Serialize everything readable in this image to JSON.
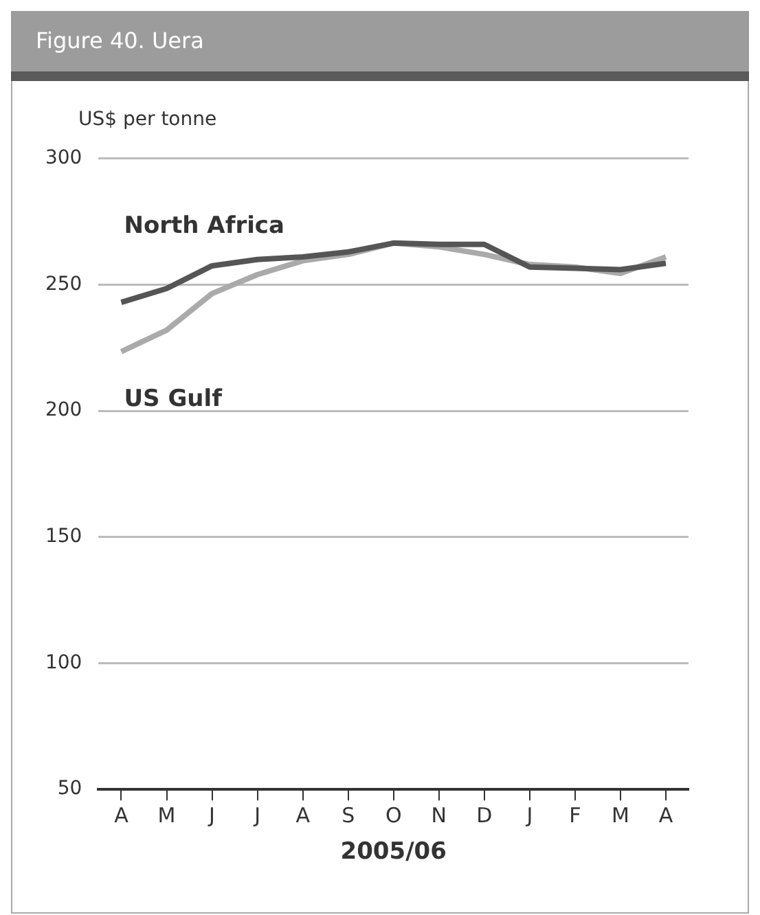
{
  "chart_data": {
    "type": "line",
    "title": "Figure 40. Uera",
    "ylabel": "US$ per tonne",
    "xlabel": "2005/06",
    "categories": [
      "A",
      "M",
      "J",
      "J",
      "A",
      "S",
      "O",
      "N",
      "D",
      "J",
      "F",
      "M",
      "A"
    ],
    "series": [
      {
        "name": "North Africa",
        "color": "#555555",
        "values": [
          243,
          248.5,
          257.5,
          260,
          261,
          263,
          266.5,
          266,
          266,
          257,
          256.5,
          256,
          258.5
        ]
      },
      {
        "name": "US Gulf",
        "color": "#aaaaaa",
        "values": [
          223.5,
          232,
          246.5,
          254,
          259.5,
          262,
          266.5,
          265,
          262,
          258,
          257,
          254.5,
          261
        ]
      }
    ],
    "ylim": [
      50,
      300
    ],
    "yticks": [
      50,
      100,
      150,
      200,
      250,
      300
    ],
    "grid": "y",
    "legend": false,
    "marker": "none",
    "line_style": "solid"
  }
}
